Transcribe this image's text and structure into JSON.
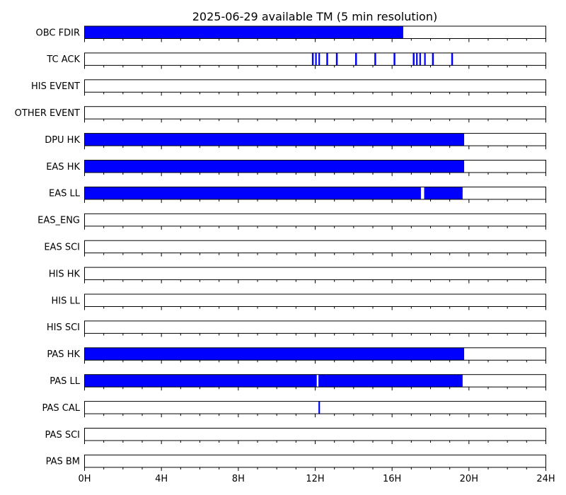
{
  "chart_data": {
    "type": "bar",
    "title": "2025-06-29 available TM (5 min resolution)",
    "xlim": [
      0,
      24
    ],
    "xticks": [
      0,
      4,
      8,
      12,
      16,
      20,
      24
    ],
    "xtick_labels": [
      "0H",
      "4H",
      "8H",
      "12H",
      "16H",
      "20H",
      "24H"
    ],
    "minor_tick_step_hours": 1,
    "fill_color": "#0000ff",
    "series": [
      {
        "name": "OBC FDIR",
        "intervals": [
          [
            0.0,
            16.58
          ]
        ]
      },
      {
        "name": "TC ACK",
        "intervals": [
          [
            11.83,
            11.92
          ],
          [
            12.0,
            12.08
          ],
          [
            12.17,
            12.25
          ],
          [
            12.58,
            12.67
          ],
          [
            13.08,
            13.17
          ],
          [
            14.08,
            14.17
          ],
          [
            15.08,
            15.17
          ],
          [
            16.08,
            16.17
          ],
          [
            17.08,
            17.17
          ],
          [
            17.25,
            17.33
          ],
          [
            17.42,
            17.5
          ],
          [
            17.67,
            17.75
          ],
          [
            18.08,
            18.17
          ],
          [
            19.08,
            19.17
          ]
        ]
      },
      {
        "name": "HIS EVENT",
        "intervals": []
      },
      {
        "name": "OTHER EVENT",
        "intervals": []
      },
      {
        "name": "DPU HK",
        "intervals": [
          [
            0.0,
            19.75
          ]
        ]
      },
      {
        "name": "EAS HK",
        "intervals": [
          [
            0.0,
            19.75
          ]
        ]
      },
      {
        "name": "EAS LL",
        "intervals": [
          [
            0.0,
            17.5
          ],
          [
            17.67,
            19.67
          ]
        ]
      },
      {
        "name": "EAS_ENG",
        "intervals": []
      },
      {
        "name": "EAS SCI",
        "intervals": []
      },
      {
        "name": "HIS HK",
        "intervals": []
      },
      {
        "name": "HIS LL",
        "intervals": []
      },
      {
        "name": "HIS SCI",
        "intervals": []
      },
      {
        "name": "PAS HK",
        "intervals": [
          [
            0.0,
            19.75
          ]
        ]
      },
      {
        "name": "PAS LL",
        "intervals": [
          [
            0.0,
            12.08
          ],
          [
            12.17,
            19.67
          ]
        ]
      },
      {
        "name": "PAS CAL",
        "intervals": [
          [
            12.17,
            12.25
          ]
        ]
      },
      {
        "name": "PAS SCI",
        "intervals": []
      },
      {
        "name": "PAS BM",
        "intervals": []
      }
    ]
  }
}
